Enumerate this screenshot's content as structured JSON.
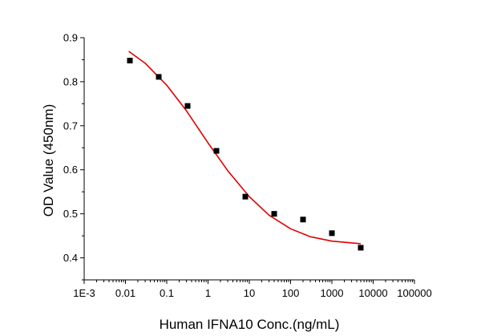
{
  "chart_data": {
    "type": "scatter",
    "title": "",
    "xlabel": "Human IFNA10 Conc.(ng/mL)",
    "ylabel": "OD Value (450nm)",
    "x_scale": "log",
    "xlim": [
      0.001,
      100000
    ],
    "ylim": [
      0.35,
      0.9
    ],
    "x_ticks": [
      {
        "value": 0.001,
        "label": "1E-3"
      },
      {
        "value": 0.01,
        "label": "0.01"
      },
      {
        "value": 0.1,
        "label": "0.1"
      },
      {
        "value": 1,
        "label": "1"
      },
      {
        "value": 10,
        "label": "10"
      },
      {
        "value": 100,
        "label": "100"
      },
      {
        "value": 1000,
        "label": "1000"
      },
      {
        "value": 10000,
        "label": "10000"
      },
      {
        "value": 100000,
        "label": "100000"
      }
    ],
    "y_ticks": [
      {
        "value": 0.4,
        "label": "0.4"
      },
      {
        "value": 0.5,
        "label": "0.5"
      },
      {
        "value": 0.6,
        "label": "0.6"
      },
      {
        "value": 0.7,
        "label": "0.7"
      },
      {
        "value": 0.8,
        "label": "0.8"
      },
      {
        "value": 0.9,
        "label": "0.9"
      }
    ],
    "grid": false,
    "legend": "none",
    "series": [
      {
        "type": "scatter",
        "marker": "square",
        "color": "#000000",
        "x": [
          0.0128,
          0.064,
          0.32,
          1.6,
          8,
          40,
          200,
          1000,
          5000
        ],
        "y": [
          0.848,
          0.811,
          0.745,
          0.643,
          0.539,
          0.5,
          0.487,
          0.456,
          0.423
        ]
      },
      {
        "type": "line",
        "color": "#e00000",
        "fit": "4PL",
        "x": [
          0.012,
          0.03,
          0.1,
          0.3,
          1,
          3,
          10,
          30,
          100,
          300,
          1000,
          5000
        ],
        "y": [
          0.869,
          0.842,
          0.792,
          0.734,
          0.661,
          0.598,
          0.539,
          0.497,
          0.466,
          0.448,
          0.438,
          0.432
        ]
      }
    ]
  }
}
